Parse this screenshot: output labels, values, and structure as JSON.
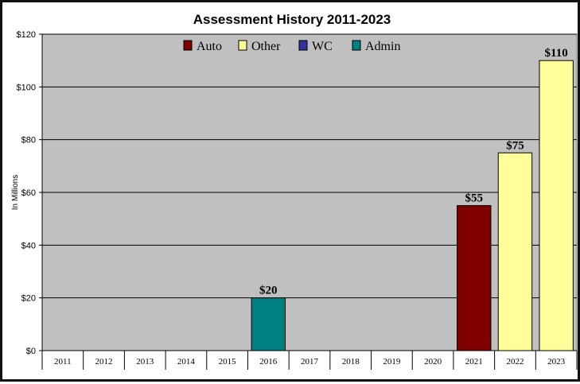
{
  "chart_data": {
    "type": "bar",
    "title": "Assessment History  2011-2023",
    "ylabel": "In Millions",
    "xlabel": "",
    "ylim": [
      0,
      120
    ],
    "yticks": [
      0,
      20,
      40,
      60,
      80,
      100,
      120
    ],
    "ytick_labels": [
      "$0",
      "$20",
      "$40",
      "$60",
      "$80",
      "$100",
      "$120"
    ],
    "categories": [
      "2011",
      "2012",
      "2013",
      "2014",
      "2015",
      "2016",
      "2017",
      "2018",
      "2019",
      "2020",
      "2021",
      "2022",
      "2023"
    ],
    "grid": true,
    "legend_position": "top",
    "series": [
      {
        "name": "Auto",
        "color": "#800000",
        "values": [
          0,
          0,
          0,
          0,
          0,
          0,
          0,
          0,
          0,
          0,
          55,
          0,
          0
        ]
      },
      {
        "name": "Other",
        "color": "#FFFF99",
        "values": [
          0,
          0,
          0,
          0,
          0,
          0,
          0,
          0,
          0,
          0,
          0,
          75,
          110
        ]
      },
      {
        "name": "WC",
        "color": "#333399",
        "values": [
          0,
          0,
          0,
          0,
          0,
          0,
          0,
          0,
          0,
          0,
          0,
          0,
          0
        ]
      },
      {
        "name": "Admin",
        "color": "#008080",
        "values": [
          0,
          0,
          0,
          0,
          0,
          20,
          0,
          0,
          0,
          0,
          0,
          0,
          0
        ]
      }
    ],
    "data_labels": [
      "",
      "",
      "",
      "",
      "",
      "$20",
      "",
      "",
      "",
      "",
      "$55",
      "$75",
      "$110"
    ],
    "plot_background": "#C0C0C0"
  }
}
